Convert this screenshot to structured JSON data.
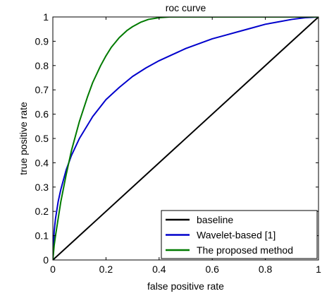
{
  "chart_data": {
    "type": "line",
    "title": "roc curve",
    "xlabel": "false positive rate",
    "ylabel": "true positive rate",
    "xlim": [
      0,
      1
    ],
    "ylim": [
      0,
      1
    ],
    "x_ticks": [
      0,
      0.2,
      0.4,
      0.6,
      0.8,
      1
    ],
    "x_tick_labels": [
      "0",
      "0.2",
      "0.4",
      "0.6",
      "0.8",
      "1"
    ],
    "y_ticks": [
      0,
      0.1,
      0.2,
      0.3,
      0.4,
      0.5,
      0.6,
      0.7,
      0.8,
      0.9,
      1
    ],
    "y_tick_labels": [
      "0",
      "0.1",
      "0.2",
      "0.3",
      "0.4",
      "0.5",
      "0.6",
      "0.7",
      "0.8",
      "0.9",
      "1"
    ],
    "grid": false,
    "legend_position": "bottom-right",
    "series": [
      {
        "name": "baseline",
        "color": "#000000",
        "x": [
          0,
          1
        ],
        "y": [
          0,
          1
        ]
      },
      {
        "name": "Wavelet-based [1]",
        "color": "#0000cc",
        "x": [
          0,
          0.005,
          0.01,
          0.02,
          0.03,
          0.05,
          0.07,
          0.1,
          0.15,
          0.2,
          0.25,
          0.3,
          0.35,
          0.4,
          0.45,
          0.5,
          0.55,
          0.6,
          0.65,
          0.7,
          0.75,
          0.8,
          0.85,
          0.9,
          0.95,
          1.0
        ],
        "y": [
          0,
          0.12,
          0.17,
          0.24,
          0.29,
          0.37,
          0.43,
          0.5,
          0.59,
          0.66,
          0.71,
          0.755,
          0.79,
          0.82,
          0.845,
          0.87,
          0.89,
          0.91,
          0.925,
          0.94,
          0.955,
          0.97,
          0.98,
          0.99,
          0.997,
          1.0
        ]
      },
      {
        "name": "The proposed method",
        "color": "#007a00",
        "x": [
          0,
          0.005,
          0.01,
          0.02,
          0.03,
          0.05,
          0.07,
          0.1,
          0.13,
          0.15,
          0.18,
          0.2,
          0.22,
          0.25,
          0.28,
          0.3,
          0.33,
          0.36,
          0.4,
          0.44,
          0.48,
          0.55,
          0.7,
          0.85,
          1.0
        ],
        "y": [
          0,
          0.06,
          0.1,
          0.17,
          0.24,
          0.35,
          0.45,
          0.57,
          0.67,
          0.73,
          0.8,
          0.84,
          0.875,
          0.915,
          0.945,
          0.96,
          0.978,
          0.99,
          0.997,
          1.0,
          1.0,
          1.0,
          1.0,
          1.0,
          1.0
        ]
      }
    ]
  }
}
